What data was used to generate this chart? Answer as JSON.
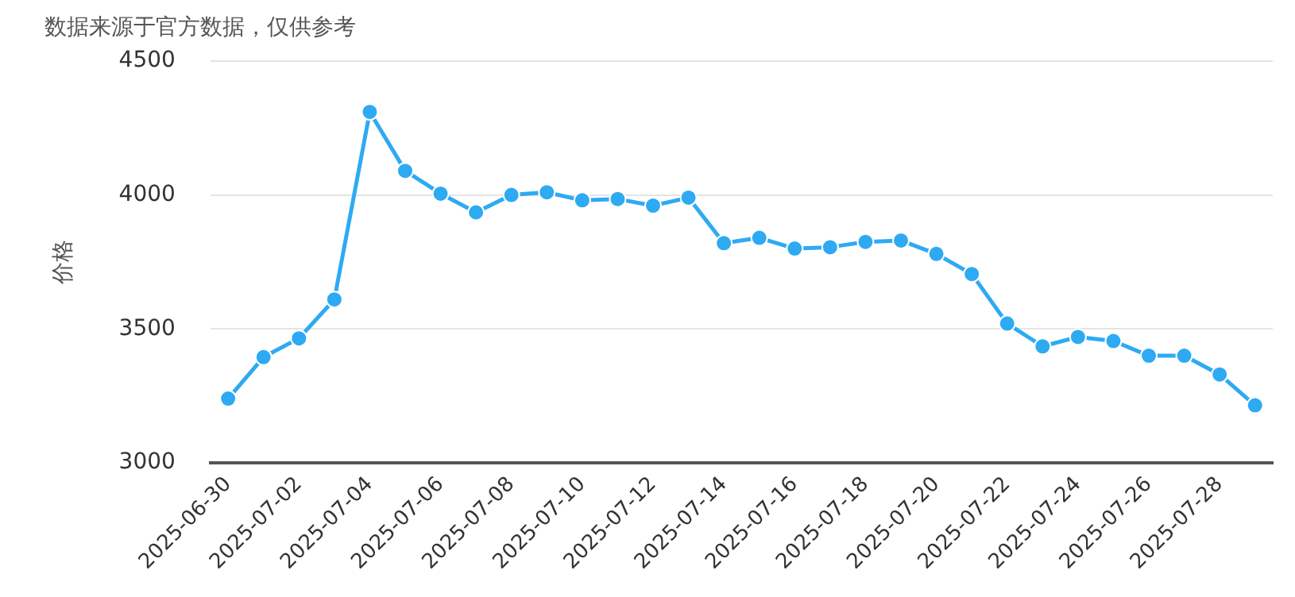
{
  "chart_data": {
    "type": "line",
    "title": "数据来源于官方数据，仅供参考",
    "ylabel": "价格",
    "categories": [
      "2025-06-30",
      null,
      "2025-07-02",
      null,
      "2025-07-04",
      null,
      "2025-07-06",
      null,
      "2025-07-08",
      null,
      "2025-07-10",
      null,
      "2025-07-12",
      null,
      "2025-07-14",
      null,
      "2025-07-16",
      null,
      "2025-07-18",
      null,
      "2025-07-20",
      null,
      "2025-07-22",
      null,
      "2025-07-24",
      null,
      "2025-07-26",
      null,
      "2025-07-28",
      null
    ],
    "series": [
      {
        "color": "#2eaaf2",
        "values": [
          3240,
          3395,
          3465,
          3610,
          4310,
          4090,
          4005,
          3935,
          4000,
          4010,
          3980,
          3985,
          3960,
          3990,
          3820,
          3840,
          3800,
          3805,
          3825,
          3830,
          3780,
          3705,
          3520,
          3435,
          3470,
          3455,
          3400,
          3400,
          3330,
          3215
        ]
      }
    ],
    "ylim": [
      3000,
      4500
    ],
    "yticks": [
      3000,
      3500,
      4000,
      4500
    ],
    "grid": "y",
    "legend": false,
    "marker": "circle",
    "line_style": "solid"
  }
}
